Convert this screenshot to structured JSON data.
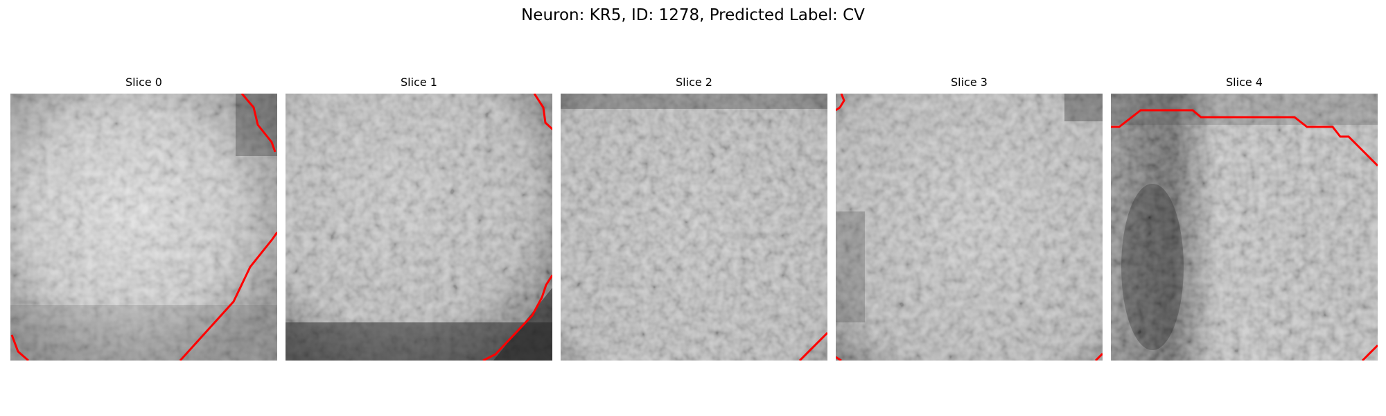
{
  "figure": {
    "title": "Neuron: KR5, ID: 1278, Predicted Label: CV",
    "contour_color": "#ff0000"
  },
  "slices": [
    {
      "title": "Slice 0"
    },
    {
      "title": "Slice 1"
    },
    {
      "title": "Slice 2"
    },
    {
      "title": "Slice 3"
    },
    {
      "title": "Slice 4"
    }
  ]
}
